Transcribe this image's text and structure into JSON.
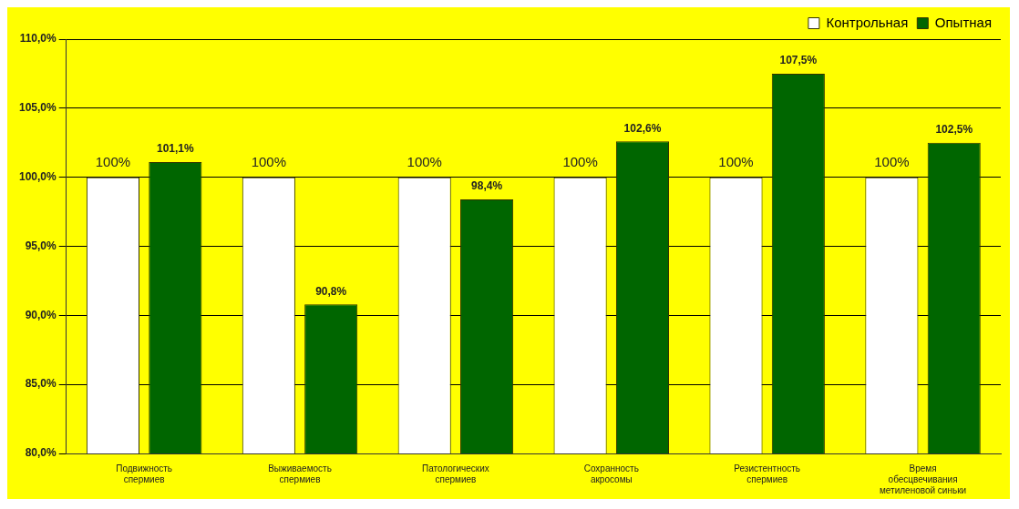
{
  "chart_data": {
    "type": "bar",
    "categories": [
      "Подвижность\nспермиев",
      "Выживаемость\nспермиев",
      "Патологических\nспермиев",
      "Сохранность\nакросомы",
      "Резистентность\nспермиев",
      "Время\nобесцвечивания\nметиленовой синьки"
    ],
    "series": [
      {
        "name": "Контрольная",
        "color": "#ffffff",
        "values": [
          100,
          100,
          100,
          100,
          100,
          100
        ],
        "value_labels": [
          "100%",
          "100%",
          "100%",
          "100%",
          "100%",
          "100%"
        ]
      },
      {
        "name": "Опытная",
        "color": "#006600",
        "values": [
          101.1,
          90.8,
          98.4,
          102.6,
          107.5,
          102.5
        ],
        "value_labels": [
          "101,1%",
          "90,8%",
          "98,4%",
          "102,6%",
          "107,5%",
          "102,5%"
        ]
      }
    ],
    "ylim": [
      80,
      110
    ],
    "yticks": [
      {
        "value": 80,
        "label": "80,0%"
      },
      {
        "value": 85,
        "label": "85,0%"
      },
      {
        "value": 90,
        "label": "90,0%"
      },
      {
        "value": 95,
        "label": "95,0%"
      },
      {
        "value": 100,
        "label": "100,0%"
      },
      {
        "value": 105,
        "label": "105,0%"
      },
      {
        "value": 110,
        "label": "110,0%"
      }
    ],
    "grid": "y",
    "legend": "top right"
  }
}
